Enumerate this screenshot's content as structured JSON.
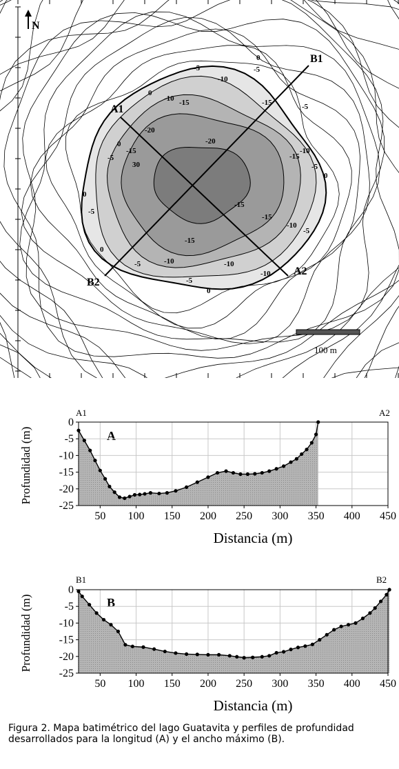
{
  "map": {
    "north_label": "N",
    "scale_label": "100 m",
    "transect_labels": [
      "A1",
      "A2",
      "B1",
      "B2"
    ],
    "contour_labels": [
      "0",
      "-5",
      "-10",
      "-15",
      "-20",
      "30"
    ]
  },
  "chart_data": [
    {
      "type": "area",
      "panel_label": "A",
      "start_label": "A1",
      "end_label": "A2",
      "xlabel": "Distancia (m)",
      "ylabel": "Profundidad (m)",
      "xlim": [
        20,
        450
      ],
      "ylim": [
        -25,
        0
      ],
      "xticks": [
        50,
        100,
        150,
        200,
        250,
        300,
        350,
        400,
        450
      ],
      "yticks": [
        0,
        -5,
        -10,
        -15,
        -20,
        -25
      ],
      "grid": true,
      "fill": "#b5b5b5",
      "x": [
        20,
        28,
        36,
        43,
        50,
        57,
        63,
        70,
        77,
        84,
        91,
        98,
        105,
        112,
        120,
        132,
        143,
        155,
        170,
        185,
        200,
        213,
        225,
        235,
        245,
        255,
        265,
        275,
        285,
        295,
        305,
        315,
        323,
        330,
        337,
        344,
        350,
        353
      ],
      "y": [
        -2.5,
        -5.5,
        -8.5,
        -11.5,
        -14.5,
        -17,
        -19.3,
        -21,
        -22.5,
        -22.8,
        -22.3,
        -21.8,
        -21.7,
        -21.5,
        -21.2,
        -21.4,
        -21.2,
        -20.6,
        -19.5,
        -18,
        -16.5,
        -15.2,
        -14.7,
        -15.2,
        -15.6,
        -15.6,
        -15.5,
        -15.2,
        -14.7,
        -14,
        -13.2,
        -12,
        -11,
        -9.6,
        -8.2,
        -6.2,
        -3.7,
        0
      ]
    },
    {
      "type": "area",
      "panel_label": "B",
      "start_label": "B1",
      "end_label": "B2",
      "xlabel": "Distancia (m)",
      "ylabel": "Profundidad (m)",
      "xlim": [
        20,
        450
      ],
      "ylim": [
        -25,
        0
      ],
      "xticks": [
        50,
        100,
        150,
        200,
        250,
        300,
        350,
        400,
        450
      ],
      "yticks": [
        0,
        -5,
        -10,
        -15,
        -20,
        -25
      ],
      "grid": true,
      "fill": "#b5b5b5",
      "x": [
        20,
        25,
        35,
        45,
        55,
        65,
        75,
        85,
        95,
        110,
        125,
        140,
        155,
        170,
        185,
        200,
        215,
        230,
        240,
        250,
        262,
        275,
        285,
        295,
        305,
        315,
        325,
        335,
        345,
        355,
        365,
        375,
        385,
        395,
        405,
        415,
        425,
        432,
        440,
        448,
        452
      ],
      "y": [
        -0.5,
        -2,
        -4.5,
        -7,
        -9,
        -10.5,
        -12.5,
        -16.5,
        -17,
        -17.2,
        -17.8,
        -18.5,
        -19,
        -19.3,
        -19.4,
        -19.5,
        -19.5,
        -19.8,
        -20.1,
        -20.4,
        -20.3,
        -20.1,
        -19.8,
        -18.9,
        -18.6,
        -17.9,
        -17.3,
        -16.9,
        -16.4,
        -15,
        -13.5,
        -12,
        -11,
        -10.5,
        -10,
        -8.6,
        -7,
        -5.5,
        -3.5,
        -1.5,
        0
      ]
    }
  ],
  "caption": "Figura 2. Mapa batimétrico del lago Guatavita y perfiles de profundidad desarrollados para la longitud (A) y el ancho máximo (B)."
}
